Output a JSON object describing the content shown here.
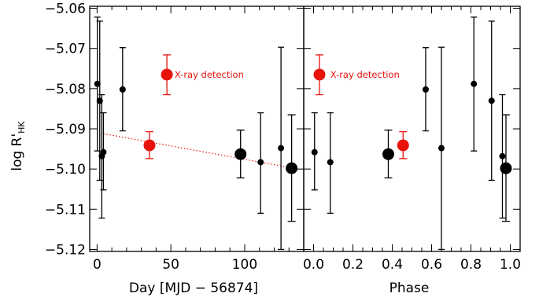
{
  "chart_data": [
    {
      "type": "scatter",
      "panel": "left",
      "xlabel": "Day [MJD − 56874]",
      "ylabel": {
        "main": "log R'",
        "sub": "HK"
      },
      "xlim": [
        -5,
        140
      ],
      "ylim": [
        -5.1205,
        -5.0595
      ],
      "xticks": [
        0,
        50,
        100
      ],
      "xtick_labels": [
        "0",
        "50",
        "100"
      ],
      "yticks": [
        -5.06,
        -5.07,
        -5.08,
        -5.09,
        -5.1,
        -5.11,
        -5.12
      ],
      "ytick_labels": [
        "−5.06",
        "−5.07",
        "−5.08",
        "−5.09",
        "−5.10",
        "−5.11",
        "−5.12"
      ],
      "series": [
        {
          "color": "#000000",
          "points": [
            {
              "x": 0.2,
              "y": -5.0788,
              "err_low": -5.0955,
              "err_high": -5.0622,
              "size": "small"
            },
            {
              "x": 1.8,
              "y": -5.083,
              "err_low": -5.1028,
              "err_high": -5.0632,
              "size": "small"
            },
            {
              "x": 3.2,
              "y": -5.0968,
              "err_low": -5.1122,
              "err_high": -5.0815,
              "size": "small"
            },
            {
              "x": 4.3,
              "y": -5.0958,
              "err_low": -5.1052,
              "err_high": -5.086,
              "size": "small"
            },
            {
              "x": 17.3,
              "y": -5.0802,
              "err_low": -5.0905,
              "err_high": -5.0698,
              "size": "small"
            },
            {
              "x": 97.2,
              "y": -5.0963,
              "err_low": -5.1022,
              "err_high": -5.0903,
              "size": "large"
            },
            {
              "x": 110.8,
              "y": -5.0983,
              "err_low": -5.111,
              "err_high": -5.086,
              "size": "small"
            },
            {
              "x": 124.6,
              "y": -5.0948,
              "err_low": -5.12,
              "err_high": -5.0697,
              "size": "small"
            },
            {
              "x": 131.8,
              "y": -5.0998,
              "err_low": -5.113,
              "err_high": -5.0865,
              "size": "large"
            }
          ]
        },
        {
          "color": "#e8140c",
          "points": [
            {
              "x": 35.5,
              "y": -5.0941,
              "err_low": -5.0974,
              "err_high": -5.0907,
              "size": "large"
            },
            {
              "x": 47.3,
              "y": -5.0765,
              "err_low": -5.0815,
              "err_high": -5.0716,
              "size": "large"
            }
          ]
        }
      ],
      "trend_line": {
        "color": "#e8140c",
        "style": "dotted",
        "from": {
          "x": 4.3,
          "y": -5.0912
        },
        "to": {
          "x": 131.8,
          "y": -5.0997
        }
      },
      "annotation": {
        "text": "X-ray detection",
        "x": 52.5,
        "y": -5.0765,
        "color": "#e8140c"
      }
    },
    {
      "type": "scatter",
      "panel": "right",
      "xlabel": "Phase",
      "xlim": [
        -0.05,
        1.05
      ],
      "ylim": [
        -5.1205,
        -5.0595
      ],
      "xticks": [
        0.0,
        0.2,
        0.4,
        0.6,
        0.8,
        1.0
      ],
      "xtick_labels": [
        "0.0",
        "0.2",
        "0.4",
        "0.6",
        "0.8",
        "1.0"
      ],
      "series": [
        {
          "color": "#000000",
          "points": [
            {
              "x": 0.005,
              "y": -5.0958,
              "err_low": -5.1052,
              "err_high": -5.086,
              "size": "small"
            },
            {
              "x": 0.085,
              "y": -5.0983,
              "err_low": -5.111,
              "err_high": -5.086,
              "size": "small"
            },
            {
              "x": 0.38,
              "y": -5.0963,
              "err_low": -5.1022,
              "err_high": -5.0903,
              "size": "large"
            },
            {
              "x": 0.57,
              "y": -5.0802,
              "err_low": -5.0905,
              "err_high": -5.0698,
              "size": "small"
            },
            {
              "x": 0.65,
              "y": -5.0948,
              "err_low": -5.12,
              "err_high": -5.0697,
              "size": "small"
            },
            {
              "x": 0.815,
              "y": -5.0788,
              "err_low": -5.0955,
              "err_high": -5.0622,
              "size": "small"
            },
            {
              "x": 0.905,
              "y": -5.083,
              "err_low": -5.1028,
              "err_high": -5.0632,
              "size": "small"
            },
            {
              "x": 0.96,
              "y": -5.0968,
              "err_low": -5.1122,
              "err_high": -5.0815,
              "size": "small"
            },
            {
              "x": 0.978,
              "y": -5.0998,
              "err_low": -5.113,
              "err_high": -5.0865,
              "size": "large"
            }
          ]
        },
        {
          "color": "#e8140c",
          "points": [
            {
              "x": 0.03,
              "y": -5.0765,
              "err_low": -5.0815,
              "err_high": -5.0716,
              "size": "large"
            },
            {
              "x": 0.455,
              "y": -5.0941,
              "err_low": -5.0974,
              "err_high": -5.0907,
              "size": "large"
            }
          ]
        }
      ],
      "annotation": {
        "text": "X-ray detection",
        "x": 0.085,
        "y": -5.0765,
        "color": "#e8140c"
      }
    }
  ]
}
